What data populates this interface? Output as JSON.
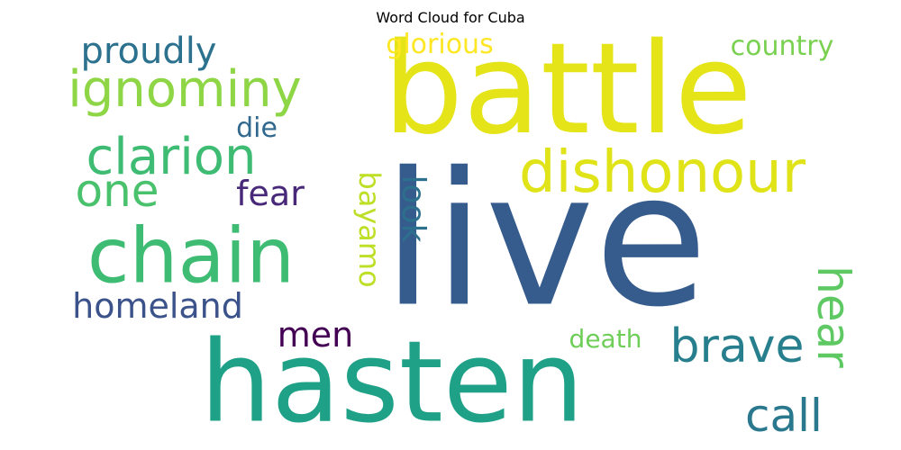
{
  "chart_data": {
    "type": "wordcloud",
    "title": "Word Cloud for Cuba",
    "words": [
      {
        "text": "live",
        "weight": 1.0,
        "color": "#365c8d",
        "orientation": "horizontal"
      },
      {
        "text": "battle",
        "weight": 0.85,
        "color": "#e5e419",
        "orientation": "horizontal"
      },
      {
        "text": "hasten",
        "weight": 0.8,
        "color": "#1fa187",
        "orientation": "horizontal"
      },
      {
        "text": "chain",
        "weight": 0.55,
        "color": "#3fbc73",
        "orientation": "horizontal"
      },
      {
        "text": "dishonour",
        "weight": 0.38,
        "color": "#dfe318",
        "orientation": "horizontal"
      },
      {
        "text": "ignominy",
        "weight": 0.34,
        "color": "#8ed645",
        "orientation": "horizontal"
      },
      {
        "text": "clarion",
        "weight": 0.34,
        "color": "#3fbc73",
        "orientation": "horizontal"
      },
      {
        "text": "brave",
        "weight": 0.3,
        "color": "#277f8e",
        "orientation": "horizontal"
      },
      {
        "text": "one",
        "weight": 0.3,
        "color": "#4ac16d",
        "orientation": "horizontal"
      },
      {
        "text": "call",
        "weight": 0.3,
        "color": "#2a788e",
        "orientation": "horizontal"
      },
      {
        "text": "hear",
        "weight": 0.3,
        "color": "#5ec962",
        "orientation": "vertical"
      },
      {
        "text": "homeland",
        "weight": 0.24,
        "color": "#3b528b",
        "orientation": "horizontal"
      },
      {
        "text": "proudly",
        "weight": 0.24,
        "color": "#2c728e",
        "orientation": "horizontal"
      },
      {
        "text": "look",
        "weight": 0.22,
        "color": "#2d708e",
        "orientation": "vertical"
      },
      {
        "text": "bayamo",
        "weight": 0.2,
        "color": "#bddf26",
        "orientation": "vertical"
      },
      {
        "text": "fear",
        "weight": 0.2,
        "color": "#482878",
        "orientation": "horizontal"
      },
      {
        "text": "men",
        "weight": 0.2,
        "color": "#440154",
        "orientation": "horizontal"
      },
      {
        "text": "country",
        "weight": 0.17,
        "color": "#7ad151",
        "orientation": "horizontal"
      },
      {
        "text": "glorious",
        "weight": 0.17,
        "color": "#fde725",
        "orientation": "horizontal"
      },
      {
        "text": "die",
        "weight": 0.16,
        "color": "#31688e",
        "orientation": "horizontal"
      },
      {
        "text": "death",
        "weight": 0.16,
        "color": "#6ece58",
        "orientation": "horizontal"
      }
    ]
  }
}
